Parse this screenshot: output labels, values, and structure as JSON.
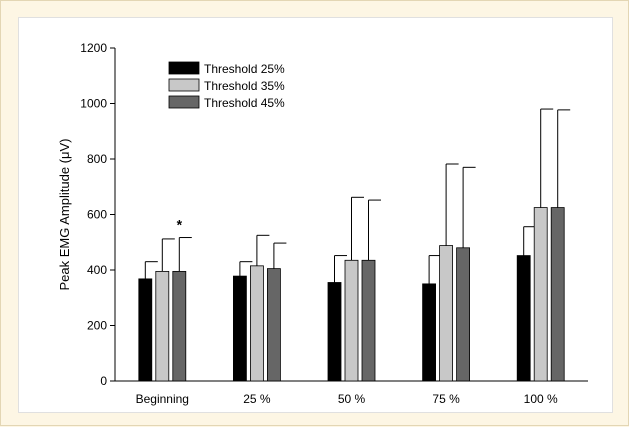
{
  "chart_data": {
    "type": "bar",
    "ylabel": "Peak EMG Amplitude (μV)",
    "xlabel": "",
    "ylim": [
      0,
      1200
    ],
    "y_ticks": [
      0,
      200,
      400,
      600,
      800,
      1000,
      1200
    ],
    "y_tick_labels": [
      "0",
      "200",
      "400",
      "600",
      "800",
      "1000",
      "1200"
    ],
    "categories": [
      "Beginning",
      "25 %",
      "50 %",
      "75 %",
      "100 %"
    ],
    "series": [
      {
        "name": "Threshold 25%",
        "color": "#000000",
        "values": [
          368,
          378,
          355,
          350,
          452
        ],
        "error_upper": [
          430,
          430,
          452,
          452,
          556
        ]
      },
      {
        "name": "Threshold 35%",
        "color": "#c8c8c8",
        "values": [
          395,
          415,
          435,
          488,
          625
        ],
        "error_upper": [
          512,
          525,
          662,
          782,
          980
        ]
      },
      {
        "name": "Threshold 45%",
        "color": "#666666",
        "values": [
          395,
          405,
          435,
          480,
          625
        ],
        "error_upper": [
          517,
          497,
          652,
          770,
          977
        ]
      }
    ],
    "annotations": [
      {
        "text": "*",
        "category_index": 0,
        "series_index": 2
      }
    ],
    "legend_placement": "top-left",
    "grid": false
  }
}
